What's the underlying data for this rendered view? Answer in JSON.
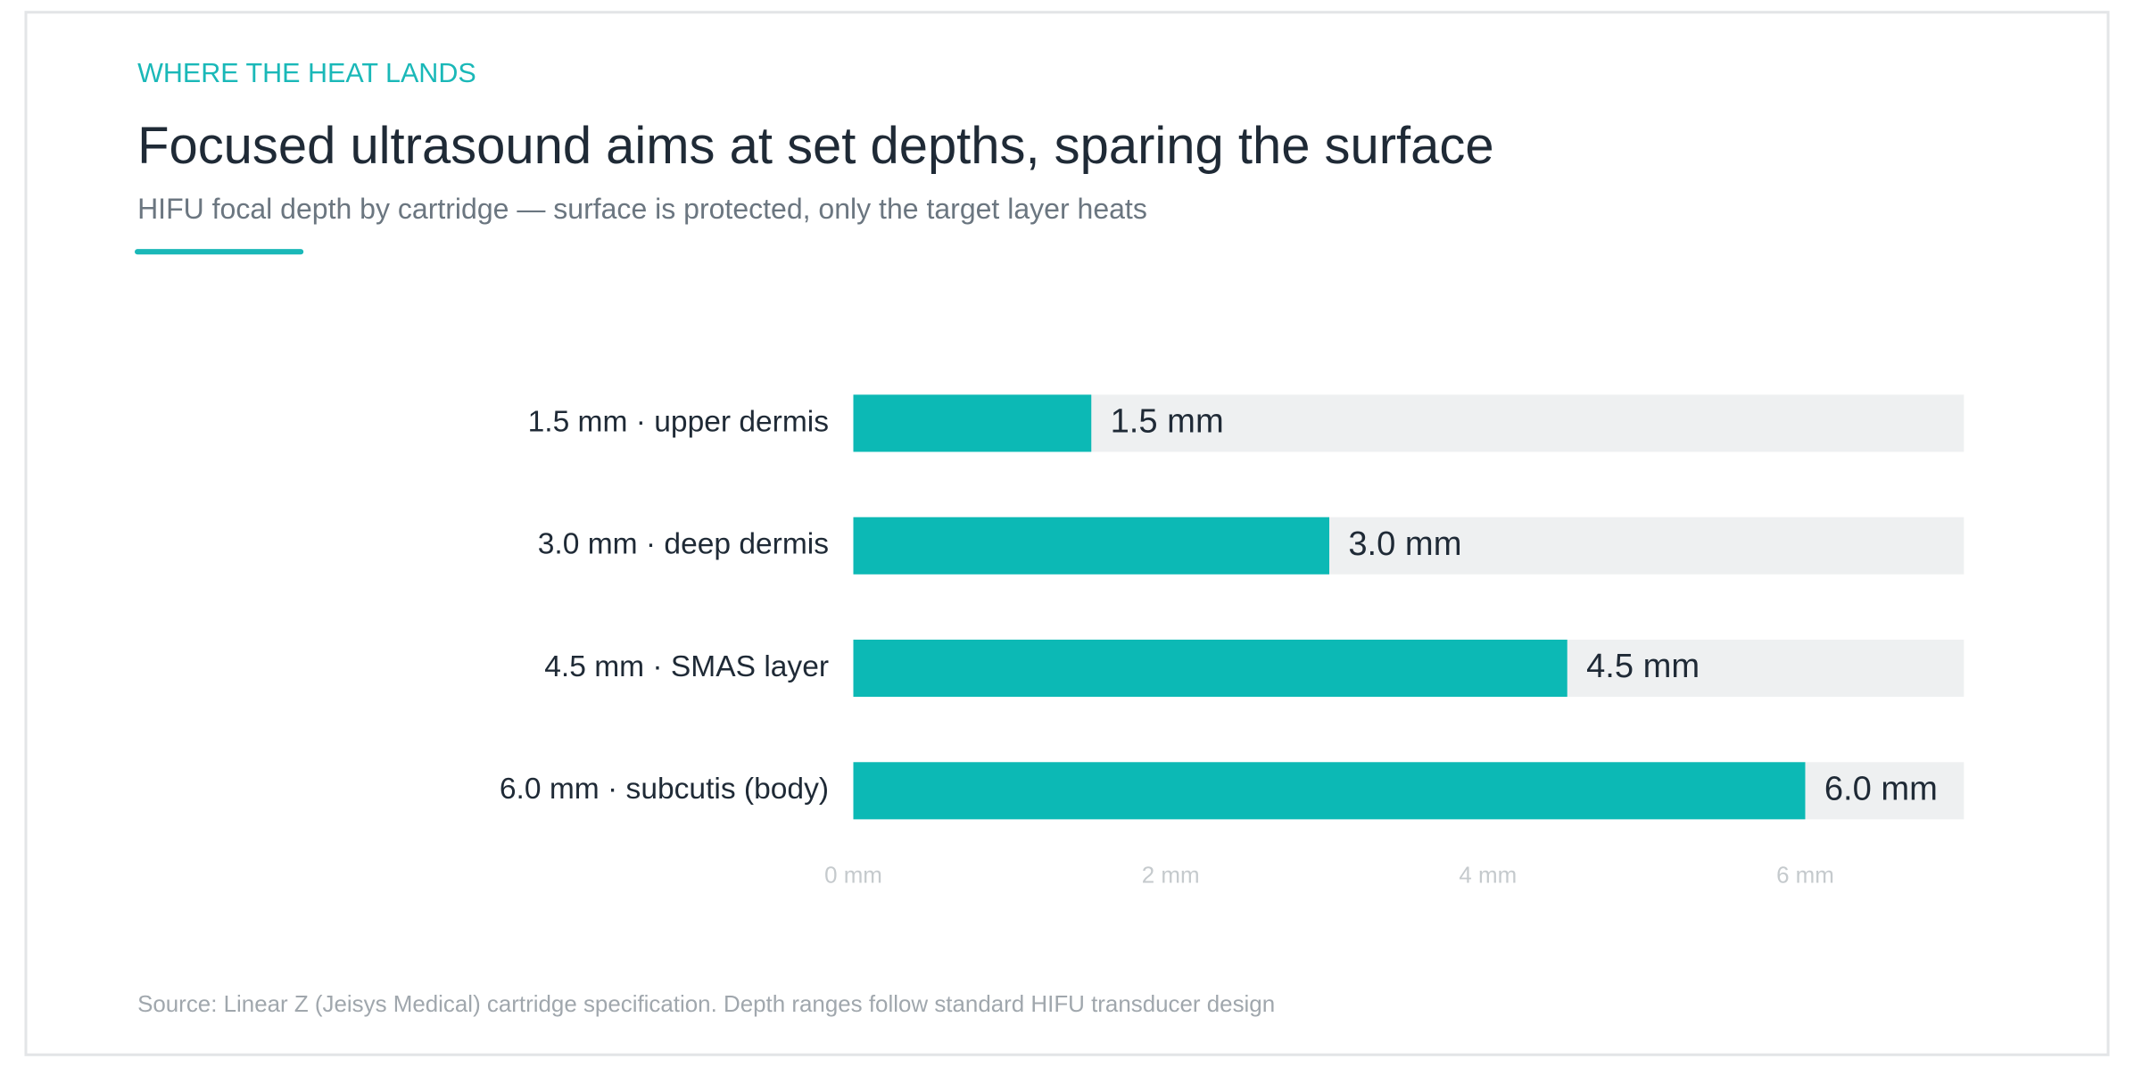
{
  "eyebrow": "WHERE THE HEAT LANDS",
  "chart_data": {
    "type": "bar",
    "orientation": "horizontal",
    "title": "Focused ultrasound aims at set depths, sparing the surface",
    "subtitle": "HIFU focal depth by cartridge — surface is protected, only the target layer heats",
    "categories": [
      "1.5 mm · upper dermis",
      "3.0 mm · deep dermis",
      "4.5 mm · SMAS layer",
      "6.0 mm · subcutis (body)"
    ],
    "values": [
      1.5,
      3.0,
      4.5,
      6.0
    ],
    "value_labels": [
      "1.5 mm",
      "3.0 mm",
      "4.5 mm",
      "6.0 mm"
    ],
    "color": "#0cb9b5",
    "xlim": [
      0,
      7
    ],
    "xticks": [
      {
        "value": 0,
        "label": "0 mm"
      },
      {
        "value": 2,
        "label": "2 mm"
      },
      {
        "value": 4,
        "label": "4 mm"
      },
      {
        "value": 6,
        "label": "6 mm"
      }
    ],
    "grid": false
  },
  "source": "Source: Linear Z (Jeisys Medical) cartridge specification. Depth ranges follow standard HIFU transducer design"
}
